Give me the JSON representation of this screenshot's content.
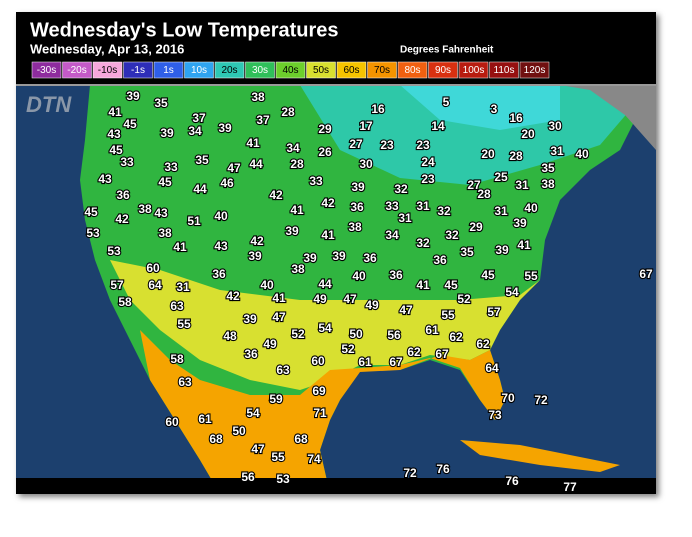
{
  "header": {
    "title": "Wednesday's Low Temperatures",
    "subtitle": "Wednesday, Apr 13, 2016",
    "units": "Degrees Fahrenheit"
  },
  "legend": [
    {
      "label": "-30s",
      "color": "#8e2c9e"
    },
    {
      "label": "-20s",
      "color": "#c45ac8"
    },
    {
      "label": "-10s",
      "color": "#f7a8dc"
    },
    {
      "label": "-1s",
      "color": "#2e2eb8"
    },
    {
      "label": "1s",
      "color": "#2f5fe8"
    },
    {
      "label": "10s",
      "color": "#2fa4f0"
    },
    {
      "label": "20s",
      "color": "#2ec8b4"
    },
    {
      "label": "30s",
      "color": "#2fbf5a"
    },
    {
      "label": "40s",
      "color": "#6ccf2c"
    },
    {
      "label": "50s",
      "color": "#d8e030"
    },
    {
      "label": "60s",
      "color": "#f5c400"
    },
    {
      "label": "70s",
      "color": "#f59400"
    },
    {
      "label": "80s",
      "color": "#f06010"
    },
    {
      "label": "90s",
      "color": "#d83010"
    },
    {
      "label": "100s",
      "color": "#b81c10"
    },
    {
      "label": "110s",
      "color": "#961010"
    },
    {
      "label": "120s",
      "color": "#701010"
    }
  ],
  "logo": "DTN",
  "temperatures": [
    39,
    35,
    38,
    5,
    3,
    41,
    37,
    28,
    16,
    16,
    45,
    43,
    39,
    34,
    39,
    37,
    29,
    17,
    14,
    20,
    30,
    45,
    41,
    34,
    26,
    27,
    23,
    23,
    20,
    28,
    31,
    40,
    33,
    33,
    35,
    47,
    44,
    28,
    30,
    24,
    35,
    43,
    45,
    46,
    33,
    23,
    25,
    27,
    28,
    31,
    38,
    36,
    44,
    42,
    39,
    32,
    45,
    42,
    38,
    43,
    51,
    40,
    41,
    42,
    36,
    33,
    31,
    31,
    32,
    31,
    40,
    53,
    38,
    39,
    41,
    38,
    34,
    32,
    32,
    29,
    39,
    53,
    41,
    43,
    42,
    39,
    39,
    39,
    36,
    35,
    39,
    41,
    36,
    60,
    36,
    38,
    40,
    36,
    55,
    67,
    57,
    64,
    31,
    40,
    44,
    41,
    45,
    45,
    58,
    63,
    42,
    41,
    49,
    47,
    49,
    52,
    54,
    47,
    55,
    39,
    47,
    54,
    50,
    56,
    61,
    55,
    57,
    48,
    49,
    52,
    52,
    61,
    67,
    62,
    67,
    62,
    62,
    58,
    36,
    60,
    63,
    63,
    69,
    64,
    59,
    54,
    71,
    70,
    72,
    73,
    60,
    61,
    50,
    68,
    68,
    47,
    55,
    74,
    72,
    76,
    56,
    53,
    76,
    77
  ]
}
